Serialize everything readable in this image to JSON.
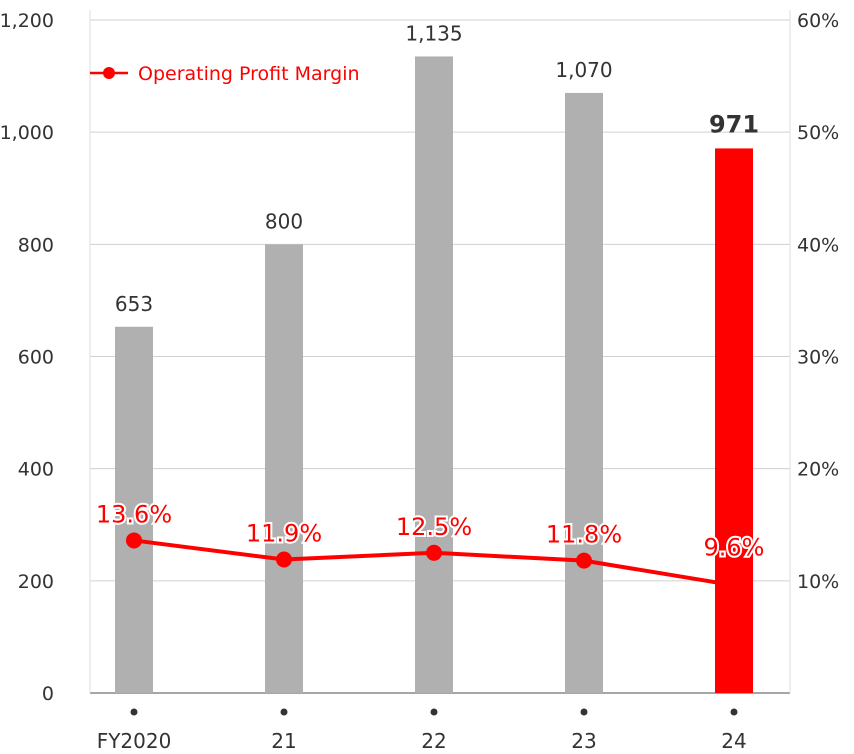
{
  "chart_data": {
    "type": "bar",
    "categories": [
      "FY2020",
      "21",
      "22",
      "23",
      "24"
    ],
    "series": [
      {
        "values": [
          653,
          800,
          1135,
          1070,
          971
        ],
        "axis": "left",
        "colors": [
          "#b0b0b0",
          "#b0b0b0",
          "#b0b0b0",
          "#b0b0b0",
          "#ff0000"
        ]
      },
      {
        "name": "Operating Profit Margin",
        "type": "line",
        "axis": "right",
        "values": [
          13.6,
          11.9,
          12.5,
          11.8,
          9.6
        ],
        "color": "#ff0000"
      }
    ],
    "bar_labels": [
      "653",
      "800",
      "1,135",
      "1,070",
      "971"
    ],
    "line_labels": [
      "13.6%",
      "11.9%",
      "12.5%",
      "11.8%",
      "9.6%"
    ],
    "y_left": {
      "range": [
        0,
        1200
      ],
      "ticks": [
        "0",
        "200",
        "400",
        "600",
        "800",
        "1,000",
        "1,200"
      ]
    },
    "y_right": {
      "range": [
        0,
        60
      ],
      "ticks": [
        "",
        "10%",
        "20%",
        "30%",
        "40%",
        "50%",
        "60%"
      ]
    },
    "grid": true,
    "legend": {
      "position": "top-left",
      "entries": [
        "Operating Profit Margin"
      ]
    }
  }
}
